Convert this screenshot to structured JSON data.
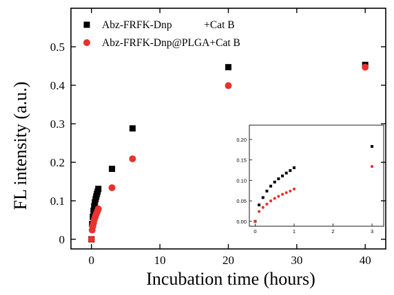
{
  "chart_data": [
    {
      "type": "scatter",
      "role": "main",
      "xlabel": "Incubation time (hours)",
      "ylabel": "FL intensity (a.u.)",
      "xlim": [
        -3,
        43
      ],
      "ylim": [
        -0.025,
        0.6
      ],
      "xticks": [
        0,
        10,
        20,
        30,
        40
      ],
      "yticks": [
        0,
        0.1,
        0.2,
        0.3,
        0.4,
        0.5
      ],
      "ytick_labels": [
        "0",
        "0.1",
        "0.2",
        "0.3",
        "0.4",
        "0.5"
      ],
      "legend_position": "top-left",
      "series": [
        {
          "name": "Abz-FRFK-Dnp            +Cat B",
          "marker": "square",
          "color": "#000000",
          "x": [
            0,
            0.1,
            0.2,
            0.3,
            0.4,
            0.5,
            0.6,
            0.7,
            0.8,
            0.9,
            1.0,
            3,
            6,
            20,
            40
          ],
          "y": [
            0,
            0.04,
            0.058,
            0.074,
            0.086,
            0.096,
            0.104,
            0.111,
            0.118,
            0.124,
            0.131,
            0.183,
            0.288,
            0.447,
            0.453
          ]
        },
        {
          "name": "Abz-FRFK-Dnp@PLGA+Cat B",
          "marker": "circle",
          "color": "#e8322c",
          "x": [
            0,
            0.1,
            0.2,
            0.3,
            0.4,
            0.5,
            0.6,
            0.7,
            0.8,
            0.9,
            1.0,
            3,
            6,
            20,
            40
          ],
          "y": [
            0,
            0.024,
            0.034,
            0.042,
            0.05,
            0.056,
            0.061,
            0.066,
            0.07,
            0.074,
            0.079,
            0.134,
            0.209,
            0.399,
            0.447
          ]
        }
      ]
    },
    {
      "type": "scatter",
      "role": "inset",
      "xlim": [
        -0.15,
        3.3
      ],
      "ylim": [
        -0.012,
        0.235
      ],
      "xticks": [
        0,
        1,
        2,
        3
      ],
      "yticks": [
        0,
        0.05,
        0.1,
        0.15,
        0.2
      ],
      "ytick_labels": [
        "0.00",
        "0.05",
        "0.10",
        "0.15",
        "0.20"
      ],
      "series": [
        {
          "marker": "square",
          "color": "#000000",
          "x": [
            0,
            0.1,
            0.2,
            0.3,
            0.4,
            0.5,
            0.6,
            0.7,
            0.8,
            0.9,
            1.0,
            3
          ],
          "y": [
            0,
            0.04,
            0.058,
            0.074,
            0.086,
            0.096,
            0.104,
            0.111,
            0.118,
            0.124,
            0.131,
            0.183
          ]
        },
        {
          "marker": "circle",
          "color": "#e8322c",
          "x": [
            0,
            0.1,
            0.2,
            0.3,
            0.4,
            0.5,
            0.6,
            0.7,
            0.8,
            0.9,
            1.0,
            3
          ],
          "y": [
            0,
            0.024,
            0.034,
            0.042,
            0.05,
            0.056,
            0.061,
            0.066,
            0.07,
            0.074,
            0.079,
            0.134
          ]
        }
      ]
    }
  ]
}
